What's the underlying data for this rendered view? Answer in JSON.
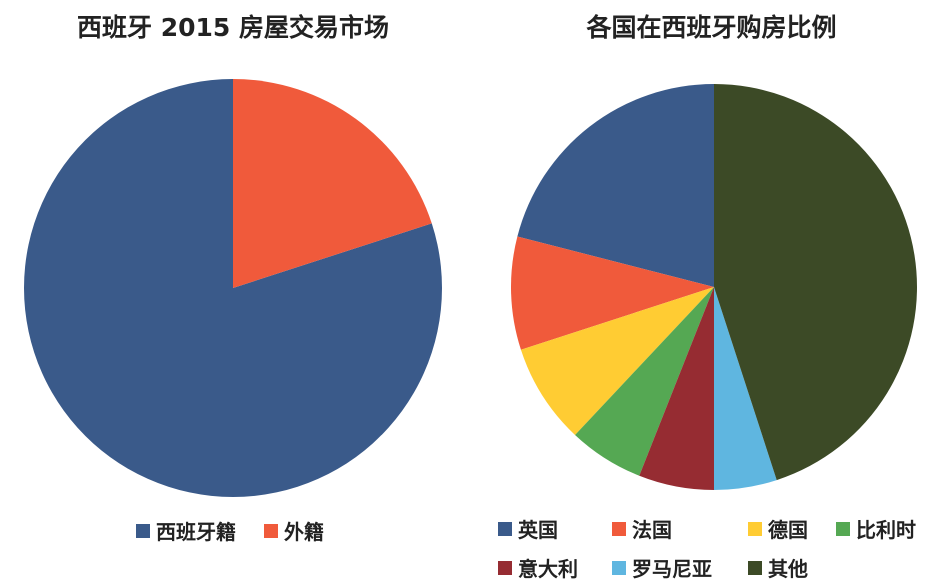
{
  "chart_data": [
    {
      "type": "pie",
      "title": "西班牙 2015 房屋交易市场",
      "labels": [
        "西班牙籍",
        "外籍"
      ],
      "values": [
        80,
        20
      ],
      "colors": [
        "#3A5A8A",
        "#F05A3B"
      ],
      "legend": "bottom"
    },
    {
      "type": "pie",
      "title": "各国在西班牙购房比例",
      "labels": [
        "英国",
        "法国",
        "德国",
        "比利时",
        "意大利",
        "罗马尼亚",
        "其他"
      ],
      "values": [
        21,
        9,
        8,
        6,
        6,
        5,
        45
      ],
      "colors": [
        "#3A5A8A",
        "#F05A3B",
        "#FFCC33",
        "#55A853",
        "#962C32",
        "#5FB6E0",
        "#3C4A26"
      ],
      "legend": "bottom"
    }
  ]
}
